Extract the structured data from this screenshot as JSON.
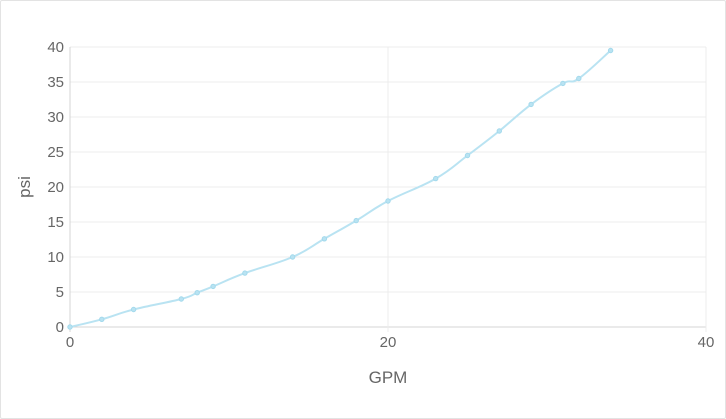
{
  "chart_data": {
    "type": "line",
    "title": "",
    "xlabel": "GPM",
    "ylabel": "psi",
    "xlim": [
      0,
      40
    ],
    "ylim": [
      0,
      40
    ],
    "x_ticks": [
      0,
      20,
      40
    ],
    "y_ticks": [
      0,
      5,
      10,
      15,
      20,
      25,
      30,
      35,
      40
    ],
    "grid": true,
    "legend": "none",
    "series": [
      {
        "color": "#b9e3f2",
        "x": [
          0,
          2,
          4,
          7,
          8,
          9,
          11,
          14,
          16,
          18,
          20,
          23,
          25,
          27,
          29,
          31,
          32,
          34
        ],
        "y": [
          0,
          1.1,
          2.5,
          4.0,
          4.9,
          5.8,
          7.7,
          10.0,
          12.6,
          15.2,
          18.0,
          21.2,
          24.5,
          28.0,
          31.8,
          34.8,
          35.5,
          39.5
        ]
      }
    ]
  }
}
